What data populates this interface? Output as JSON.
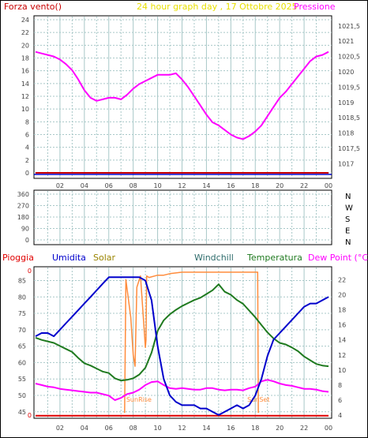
{
  "header": {
    "left": "Forza vento()",
    "center": "24 hour graph day , 17 Ottobre 2025",
    "right": "Pressione"
  },
  "colors": {
    "wind": "#c80000",
    "pressure": "#ff00ff",
    "humidity": "#0000cc",
    "solar": "#ff8c3c",
    "temperature": "#1f7a1f",
    "dewpoint": "#ff00ff",
    "rain": "#e00000",
    "grid": "#a8c8c8",
    "axis_text": "#444444",
    "panel_border": "#000000"
  },
  "chart_data": [
    {
      "type": "line",
      "name": "wind-pressure",
      "x_ticks": [
        "02",
        "04",
        "06",
        "08",
        "10",
        "12",
        "14",
        "16",
        "18",
        "20",
        "22",
        "00"
      ],
      "y_left_ticks": [
        "0",
        "2",
        "4",
        "6",
        "8",
        "10",
        "12",
        "14",
        "16",
        "18",
        "20",
        "22",
        "24"
      ],
      "y_right_ticks": [
        "1017",
        "1017,5",
        "1018",
        "1018,5",
        "1019",
        "1019,5",
        "1020",
        "1020,5",
        "1021",
        "1021,5"
      ],
      "y_right_range": [
        1016.7,
        1021.7
      ],
      "y_left_range": [
        0,
        25
      ],
      "series": [
        {
          "name": "Pressione",
          "axis": "right",
          "x": [
            0,
            0.5,
            1,
            1.5,
            2,
            2.5,
            3,
            3.5,
            4,
            4.5,
            5,
            5.5,
            6,
            6.5,
            7,
            7.5,
            8,
            8.5,
            9,
            9.5,
            10,
            10.5,
            11,
            11.5,
            12,
            12.5,
            13,
            13.5,
            14,
            14.5,
            15,
            15.5,
            16,
            16.5,
            17,
            17.5,
            18,
            18.5,
            19,
            19.5,
            20,
            20.5,
            21,
            21.5,
            22,
            22.5,
            23,
            23.5,
            24
          ],
          "y": [
            1020.65,
            1020.6,
            1020.55,
            1020.5,
            1020.4,
            1020.25,
            1020.05,
            1019.75,
            1019.4,
            1019.15,
            1019.05,
            1019.1,
            1019.15,
            1019.15,
            1019.1,
            1019.25,
            1019.45,
            1019.6,
            1019.7,
            1019.8,
            1019.9,
            1019.9,
            1019.9,
            1019.95,
            1019.75,
            1019.5,
            1019.2,
            1018.9,
            1018.6,
            1018.35,
            1018.25,
            1018.1,
            1017.95,
            1017.85,
            1017.8,
            1017.9,
            1018.05,
            1018.25,
            1018.55,
            1018.85,
            1019.15,
            1019.35,
            1019.6,
            1019.85,
            1020.1,
            1020.35,
            1020.5,
            1020.55,
            1020.65
          ]
        },
        {
          "name": "Forza vento",
          "axis": "left",
          "x": [
            0,
            24
          ],
          "y": [
            0,
            0
          ]
        }
      ]
    },
    {
      "type": "scatter",
      "name": "wind-direction",
      "y_ticks": [
        "0",
        "90",
        "180",
        "270",
        "360"
      ],
      "direction_labels": [
        "N",
        "W",
        "S",
        "E",
        "N"
      ],
      "y_range": [
        0,
        360
      ],
      "x": [],
      "y": []
    },
    {
      "type": "line",
      "name": "weather",
      "labels": {
        "rain": "Pioggia",
        "humidity": "Umidita",
        "solar": "Solar",
        "windchill": "Windchill",
        "temperature": "Temperatura",
        "dewpoint": "Dew Point (°C)"
      },
      "sunrise_label": "SunRise",
      "sunset_label": "SunSet",
      "sunrise_x": 7.3,
      "sunset_x": 18.25,
      "y_left_ticks": [
        "45",
        "50",
        "55",
        "60",
        "65",
        "70",
        "75",
        "80",
        "85"
      ],
      "y_left_top_tick": "0",
      "y_left_bottom_tick": "0",
      "y_left_range": [
        43.5,
        88
      ],
      "y_right_ticks": [
        "4",
        "6",
        "8",
        "10",
        "12",
        "14",
        "16",
        "18",
        "20",
        "22"
      ],
      "y_right_range": [
        3.8,
        23.2
      ],
      "series": [
        {
          "name": "Umidita",
          "axis": "left",
          "x": [
            0,
            0.5,
            1,
            1.5,
            2,
            2.5,
            3,
            3.5,
            4,
            4.5,
            5,
            5.5,
            6,
            6.5,
            7,
            7.5,
            8,
            8.5,
            9,
            9.5,
            10,
            10.5,
            11,
            11.5,
            12,
            12.5,
            13,
            13.5,
            14,
            14.5,
            15,
            15.5,
            16,
            16.5,
            17,
            17.5,
            18,
            18.5,
            19,
            19.5,
            20,
            20.5,
            21,
            21.5,
            22,
            22.5,
            23,
            23.5,
            24
          ],
          "y": [
            68,
            69,
            69,
            68,
            70,
            72,
            74,
            76,
            78,
            80,
            82,
            84,
            86,
            86,
            86,
            86,
            86,
            86,
            85,
            79,
            65,
            55,
            50,
            48,
            47,
            47,
            47,
            46,
            46,
            45,
            44,
            45,
            46,
            47,
            46,
            47,
            50,
            55,
            62,
            67,
            69,
            71,
            73,
            75,
            77,
            78,
            78,
            79,
            80
          ]
        },
        {
          "name": "Temperatura",
          "axis": "right",
          "x": [
            0,
            0.5,
            1,
            1.5,
            2,
            2.5,
            3,
            3.5,
            4,
            4.5,
            5,
            5.5,
            6,
            6.5,
            7,
            7.5,
            8,
            8.5,
            9,
            9.5,
            10,
            10.5,
            11,
            11.5,
            12,
            12.5,
            13,
            13.5,
            14,
            14.5,
            15,
            15.5,
            16,
            16.5,
            17,
            17.5,
            18,
            18.5,
            19,
            19.5,
            20,
            20.5,
            21,
            21.5,
            22,
            22.5,
            23,
            23.5,
            24
          ],
          "y": [
            14.3,
            14,
            13.8,
            13.6,
            13.2,
            12.8,
            12.4,
            11.6,
            10.9,
            10.6,
            10.2,
            9.8,
            9.6,
            8.9,
            8.6,
            8.7,
            8.9,
            9.4,
            10.3,
            12.3,
            15.2,
            16.6,
            17.4,
            18.0,
            18.5,
            18.9,
            19.3,
            19.6,
            20.1,
            20.6,
            21.4,
            20.4,
            20.0,
            19.3,
            18.8,
            17.9,
            17.0,
            16.0,
            15.0,
            14.2,
            13.6,
            13.4,
            13.0,
            12.5,
            11.8,
            11.3,
            10.8,
            10.6,
            10.5
          ]
        },
        {
          "name": "Dew Point",
          "axis": "right",
          "x": [
            0,
            0.5,
            1,
            1.5,
            2,
            2.5,
            3,
            3.5,
            4,
            4.5,
            5,
            5.5,
            6,
            6.5,
            7,
            7.5,
            8,
            8.5,
            9,
            9.5,
            10,
            10.5,
            11,
            11.5,
            12,
            12.5,
            13,
            13.5,
            14,
            14.5,
            15,
            15.5,
            16,
            16.5,
            17,
            17.5,
            18,
            18.5,
            19,
            19.5,
            20,
            20.5,
            21,
            21.5,
            22,
            22.5,
            23,
            23.5,
            24
          ],
          "y": [
            8.2,
            8.0,
            7.8,
            7.7,
            7.5,
            7.4,
            7.3,
            7.2,
            7.1,
            7.0,
            7.0,
            6.8,
            6.6,
            6.0,
            6.3,
            6.8,
            7.0,
            7.4,
            8.0,
            8.4,
            8.5,
            8.0,
            7.6,
            7.5,
            7.6,
            7.5,
            7.4,
            7.4,
            7.6,
            7.6,
            7.4,
            7.3,
            7.4,
            7.4,
            7.3,
            7.6,
            7.8,
            8.5,
            8.7,
            8.5,
            8.2,
            8.0,
            7.9,
            7.7,
            7.5,
            7.5,
            7.4,
            7.2,
            7.1
          ]
        },
        {
          "name": "Solar",
          "axis": "right",
          "x": [
            7.3,
            7.4,
            7.8,
            8.0,
            8.15,
            8.3,
            8.6,
            9.0,
            9.05,
            9.1,
            9.3,
            10.0,
            10.5,
            11.0,
            12.0,
            13.0,
            14.0,
            15.0,
            16.0,
            17.0,
            18.0,
            18.2,
            18.25
          ],
          "y": [
            4.3,
            22.0,
            17.0,
            12.0,
            10.5,
            21.0,
            22.5,
            13.0,
            14.0,
            22.5,
            22.3,
            22.6,
            22.6,
            22.8,
            23.0,
            23.0,
            23.0,
            23.0,
            23.0,
            23.0,
            23.0,
            23.0,
            4.3
          ]
        },
        {
          "name": "Pioggia",
          "axis": "left",
          "x": [
            0,
            24
          ],
          "y": [
            43.8,
            43.8
          ]
        }
      ]
    }
  ]
}
